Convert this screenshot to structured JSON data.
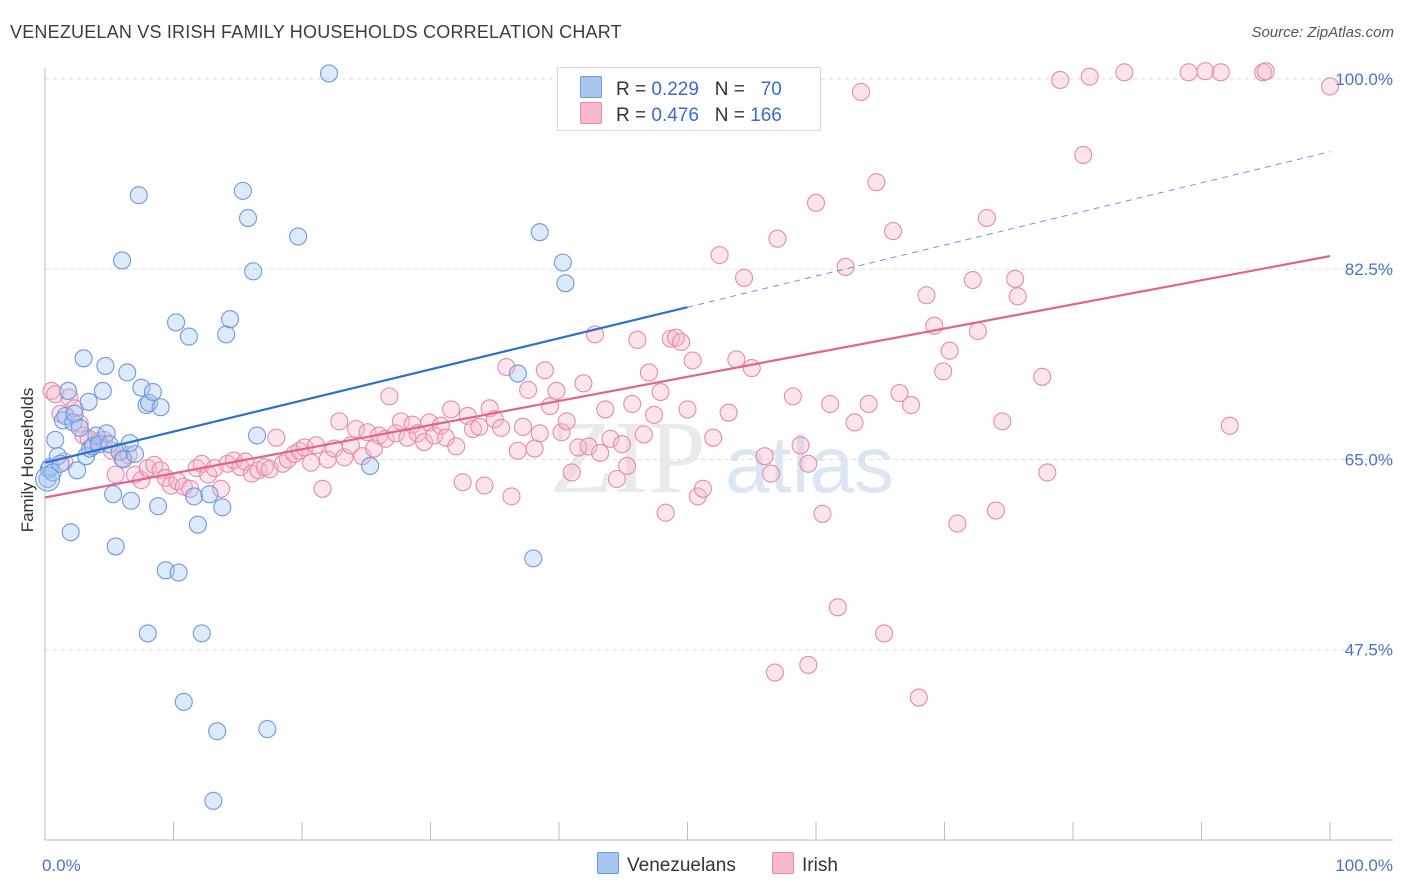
{
  "title": "VENEZUELAN VS IRISH FAMILY HOUSEHOLDS CORRELATION CHART",
  "source": "Source: ZipAtlas.com",
  "watermark": {
    "zip": "ZIP",
    "atlas": "atlas"
  },
  "legend": {
    "rows": [
      {
        "r_label": "R = ",
        "r_value": "0.229",
        "n_label": "N = ",
        "n_value": "70"
      },
      {
        "r_label": "R = ",
        "r_value": "0.476",
        "n_label": "N = ",
        "n_value": "166"
      }
    ]
  },
  "bottom_legend": [
    "Venezuelans",
    "Irish"
  ],
  "colors": {
    "venezuelans_fill": "#a9c6ef",
    "venezuelans_stroke": "#6d99dd",
    "venezuelans_line": "#2a6fd1",
    "irish_fill": "#f5b8cd",
    "irish_stroke": "#e78aab",
    "irish_line": "#e0648f",
    "tick_label": "#4a72c4",
    "grid": "#dcdcdc"
  },
  "chart_data": {
    "type": "scatter",
    "title": "VENEZUELAN VS IRISH FAMILY HOUSEHOLDS CORRELATION CHART",
    "xlabel": "",
    "ylabel": "Family Households",
    "xlim": [
      0,
      100
    ],
    "ylim": [
      30,
      101
    ],
    "x_tick_labels": [
      "0.0%",
      "100.0%"
    ],
    "y_ticks": [
      47.5,
      65.0,
      82.5,
      100.0
    ],
    "y_tick_labels": [
      "47.5%",
      "65.0%",
      "82.5%",
      "100.0%"
    ],
    "grid": true,
    "series": [
      {
        "name": "Venezuelans",
        "R": 0.229,
        "N": 70,
        "trend": {
          "x": [
            0,
            50
          ],
          "y": [
            64.7,
            79.0
          ],
          "dashed_to": [
            100,
            93.3
          ]
        },
        "points": [
          [
            0.2,
            63.2
          ],
          [
            0.3,
            64.1
          ],
          [
            0.4,
            64.3
          ],
          [
            0.6,
            63.8
          ],
          [
            0.8,
            66.8
          ],
          [
            1.0,
            65.3
          ],
          [
            1.2,
            64.6
          ],
          [
            1.4,
            68.6
          ],
          [
            1.6,
            69.0
          ],
          [
            1.8,
            71.3
          ],
          [
            2.0,
            58.3
          ],
          [
            2.2,
            68.4
          ],
          [
            2.3,
            69.2
          ],
          [
            2.5,
            64.0
          ],
          [
            2.7,
            67.9
          ],
          [
            3.0,
            74.3
          ],
          [
            3.2,
            65.3
          ],
          [
            3.4,
            70.3
          ],
          [
            3.5,
            66.0
          ],
          [
            3.7,
            66.2
          ],
          [
            4.0,
            67.2
          ],
          [
            4.2,
            66.4
          ],
          [
            4.5,
            71.3
          ],
          [
            4.7,
            73.6
          ],
          [
            4.8,
            67.4
          ],
          [
            5.0,
            66.4
          ],
          [
            5.3,
            61.8
          ],
          [
            5.5,
            57.0
          ],
          [
            5.8,
            65.7
          ],
          [
            6.0,
            83.3
          ],
          [
            6.1,
            65.0
          ],
          [
            6.4,
            73.0
          ],
          [
            6.7,
            61.2
          ],
          [
            7.0,
            65.5
          ],
          [
            7.3,
            89.3
          ],
          [
            7.5,
            71.6
          ],
          [
            7.9,
            70.0
          ],
          [
            8.1,
            70.2
          ],
          [
            8.4,
            71.2
          ],
          [
            8.8,
            60.7
          ],
          [
            9.0,
            69.8
          ],
          [
            9.4,
            54.8
          ],
          [
            10.2,
            77.6
          ],
          [
            10.4,
            54.6
          ],
          [
            10.8,
            42.7
          ],
          [
            11.2,
            76.3
          ],
          [
            11.6,
            61.6
          ],
          [
            11.9,
            59.0
          ],
          [
            12.2,
            49.0
          ],
          [
            12.8,
            61.8
          ],
          [
            13.1,
            33.6
          ],
          [
            13.4,
            40.0
          ],
          [
            13.8,
            60.6
          ],
          [
            14.1,
            76.5
          ],
          [
            14.4,
            77.9
          ],
          [
            15.4,
            89.7
          ],
          [
            15.8,
            87.2
          ],
          [
            16.2,
            82.3
          ],
          [
            16.5,
            67.2
          ],
          [
            17.3,
            40.2
          ],
          [
            19.7,
            85.5
          ],
          [
            22.1,
            100.5
          ],
          [
            25.3,
            64.4
          ],
          [
            36.8,
            72.9
          ],
          [
            38.0,
            55.9
          ],
          [
            38.5,
            85.9
          ],
          [
            40.3,
            83.1
          ],
          [
            40.5,
            81.2
          ],
          [
            8.0,
            49.0
          ],
          [
            6.6,
            66.5
          ]
        ]
      },
      {
        "name": "Irish",
        "R": 0.476,
        "N": 166,
        "trend": {
          "x": [
            0,
            100
          ],
          "y": [
            61.5,
            83.7
          ]
        },
        "points": [
          [
            0.5,
            71.3
          ],
          [
            0.8,
            71.0
          ],
          [
            1.2,
            69.2
          ],
          [
            1.5,
            64.8
          ],
          [
            1.9,
            70.7
          ],
          [
            2.3,
            69.7
          ],
          [
            2.7,
            68.3
          ],
          [
            3.0,
            67.2
          ],
          [
            3.4,
            66.9
          ],
          [
            3.8,
            66.3
          ],
          [
            4.2,
            66.7
          ],
          [
            4.6,
            66.8
          ],
          [
            5.2,
            65.8
          ],
          [
            5.5,
            63.6
          ],
          [
            6.0,
            65.1
          ],
          [
            6.5,
            65.4
          ],
          [
            7.0,
            63.6
          ],
          [
            7.5,
            63.1
          ],
          [
            8.0,
            64.2
          ],
          [
            8.5,
            64.5
          ],
          [
            9.0,
            64.0
          ],
          [
            9.4,
            63.3
          ],
          [
            9.8,
            62.6
          ],
          [
            10.3,
            63.0
          ],
          [
            10.8,
            62.5
          ],
          [
            11.3,
            62.3
          ],
          [
            11.8,
            64.2
          ],
          [
            12.2,
            64.6
          ],
          [
            12.7,
            63.6
          ],
          [
            13.2,
            64.2
          ],
          [
            13.7,
            62.3
          ],
          [
            14.2,
            64.6
          ],
          [
            14.7,
            64.9
          ],
          [
            15.2,
            64.3
          ],
          [
            15.6,
            64.8
          ],
          [
            16.1,
            63.7
          ],
          [
            16.6,
            64.0
          ],
          [
            17.1,
            64.3
          ],
          [
            17.5,
            64.1
          ],
          [
            18.0,
            67.0
          ],
          [
            18.5,
            64.6
          ],
          [
            18.9,
            65.0
          ],
          [
            19.4,
            65.5
          ],
          [
            19.8,
            65.8
          ],
          [
            20.2,
            66.1
          ],
          [
            20.7,
            64.7
          ],
          [
            21.1,
            66.3
          ],
          [
            21.6,
            62.3
          ],
          [
            22.0,
            65.0
          ],
          [
            22.5,
            66.0
          ],
          [
            22.9,
            68.5
          ],
          [
            23.3,
            65.2
          ],
          [
            23.8,
            66.3
          ],
          [
            24.2,
            67.8
          ],
          [
            24.7,
            65.3
          ],
          [
            25.1,
            67.5
          ],
          [
            25.6,
            66.0
          ],
          [
            26.0,
            67.2
          ],
          [
            26.5,
            66.9
          ],
          [
            26.8,
            70.8
          ],
          [
            27.3,
            67.4
          ],
          [
            27.7,
            68.5
          ],
          [
            28.2,
            67.0
          ],
          [
            28.6,
            68.2
          ],
          [
            29.0,
            67.4
          ],
          [
            29.5,
            66.6
          ],
          [
            29.9,
            68.4
          ],
          [
            30.3,
            67.2
          ],
          [
            30.8,
            68.1
          ],
          [
            31.2,
            67.0
          ],
          [
            31.6,
            69.6
          ],
          [
            32.0,
            66.2
          ],
          [
            32.5,
            62.9
          ],
          [
            32.9,
            69.0
          ],
          [
            33.3,
            67.8
          ],
          [
            33.8,
            68.0
          ],
          [
            34.2,
            62.6
          ],
          [
            34.6,
            69.7
          ],
          [
            35.0,
            68.7
          ],
          [
            35.5,
            67.9
          ],
          [
            35.9,
            73.5
          ],
          [
            36.3,
            61.6
          ],
          [
            36.8,
            65.8
          ],
          [
            37.2,
            68.0
          ],
          [
            37.6,
            71.4
          ],
          [
            38.1,
            66.0
          ],
          [
            38.5,
            67.4
          ],
          [
            38.9,
            73.2
          ],
          [
            39.3,
            69.9
          ],
          [
            39.8,
            71.3
          ],
          [
            40.2,
            67.5
          ],
          [
            40.6,
            68.5
          ],
          [
            41.0,
            63.8
          ],
          [
            41.5,
            66.1
          ],
          [
            41.9,
            72.0
          ],
          [
            42.3,
            66.2
          ],
          [
            42.8,
            76.5
          ],
          [
            43.2,
            65.6
          ],
          [
            43.6,
            69.6
          ],
          [
            44.0,
            66.9
          ],
          [
            44.5,
            63.2
          ],
          [
            44.9,
            66.4
          ],
          [
            45.3,
            64.4
          ],
          [
            45.7,
            70.1
          ],
          [
            46.1,
            76.0
          ],
          [
            46.6,
            67.3
          ],
          [
            47.0,
            73.0
          ],
          [
            47.4,
            69.1
          ],
          [
            47.9,
            71.2
          ],
          [
            48.3,
            60.1
          ],
          [
            48.7,
            76.1
          ],
          [
            49.1,
            76.2
          ],
          [
            49.5,
            75.8
          ],
          [
            50.0,
            69.6
          ],
          [
            50.4,
            74.1
          ],
          [
            50.8,
            61.6
          ],
          [
            51.2,
            62.3
          ],
          [
            52.0,
            67.0
          ],
          [
            52.5,
            83.8
          ],
          [
            53.2,
            69.3
          ],
          [
            53.8,
            74.2
          ],
          [
            54.4,
            81.7
          ],
          [
            55.0,
            73.4
          ],
          [
            56.0,
            65.3
          ],
          [
            56.5,
            63.7
          ],
          [
            57.0,
            85.3
          ],
          [
            58.2,
            70.8
          ],
          [
            58.8,
            66.3
          ],
          [
            59.4,
            64.6
          ],
          [
            60.0,
            88.6
          ],
          [
            60.5,
            60.0
          ],
          [
            61.1,
            70.1
          ],
          [
            61.7,
            51.4
          ],
          [
            62.3,
            82.7
          ],
          [
            63.0,
            68.4
          ],
          [
            63.5,
            98.8
          ],
          [
            64.1,
            70.1
          ],
          [
            64.7,
            90.5
          ],
          [
            65.3,
            49.0
          ],
          [
            66.0,
            86.0
          ],
          [
            66.5,
            71.1
          ],
          [
            67.4,
            70.0
          ],
          [
            68.0,
            43.1
          ],
          [
            68.6,
            80.1
          ],
          [
            69.2,
            77.3
          ],
          [
            69.9,
            73.1
          ],
          [
            70.4,
            75.0
          ],
          [
            71.0,
            59.1
          ],
          [
            72.2,
            81.5
          ],
          [
            72.6,
            76.8
          ],
          [
            73.3,
            87.2
          ],
          [
            74.0,
            60.3
          ],
          [
            74.5,
            68.5
          ],
          [
            75.5,
            81.6
          ],
          [
            75.7,
            80.0
          ],
          [
            77.6,
            72.6
          ],
          [
            78.0,
            63.8
          ],
          [
            79.0,
            99.9
          ],
          [
            80.8,
            93.0
          ],
          [
            81.3,
            100.2
          ],
          [
            84.0,
            100.6
          ],
          [
            89.0,
            100.6
          ],
          [
            90.3,
            100.7
          ],
          [
            91.5,
            100.6
          ],
          [
            92.2,
            68.1
          ],
          [
            94.8,
            100.6
          ],
          [
            95.0,
            100.7
          ],
          [
            100.0,
            99.3
          ],
          [
            56.8,
            45.4
          ],
          [
            59.4,
            46.1
          ]
        ]
      }
    ]
  }
}
